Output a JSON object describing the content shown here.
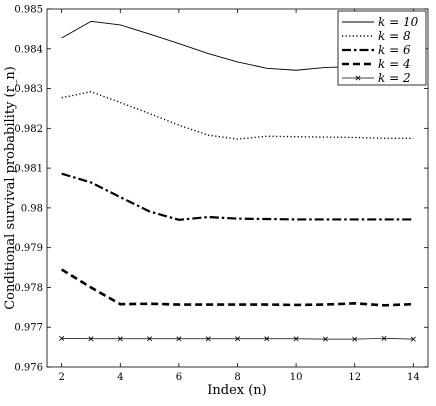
{
  "chart_data": {
    "type": "line",
    "title": "",
    "xlabel": "Index (n)",
    "ylabel": "Conditional survival probability (r_n)",
    "xlim": [
      1.5,
      14.5
    ],
    "ylim": [
      0.976,
      0.985
    ],
    "x_ticks": [
      2,
      4,
      6,
      8,
      10,
      12,
      14
    ],
    "x_tick_labels": [
      "2",
      "4",
      "6",
      "8",
      "10",
      "12",
      "14"
    ],
    "y_ticks": [
      0.976,
      0.977,
      0.978,
      0.979,
      0.98,
      0.981,
      0.982,
      0.983,
      0.984,
      0.985
    ],
    "y_tick_labels": [
      "0.976",
      "0.977",
      "0.978",
      "0.979",
      "0.98",
      "0.981",
      "0.982",
      "0.983",
      "0.984",
      "0.985"
    ],
    "grid": false,
    "legend_position": "top-right",
    "x": [
      2,
      3,
      4,
      5,
      6,
      7,
      8,
      9,
      10,
      11,
      12,
      13,
      14
    ],
    "series": [
      {
        "name": "k = 10",
        "style": "solid",
        "marker": "none",
        "values": [
          0.98427,
          0.98469,
          0.9846,
          0.98437,
          0.98413,
          0.98388,
          0.98367,
          0.98351,
          0.98346,
          0.98353,
          0.98355,
          0.98352,
          0.98351
        ]
      },
      {
        "name": "k = 8",
        "style": "dotted",
        "marker": "none",
        "values": [
          0.98277,
          0.98292,
          0.98265,
          0.98237,
          0.98208,
          0.98183,
          0.98173,
          0.9818,
          0.98179,
          0.98178,
          0.98177,
          0.98175,
          0.98175
        ]
      },
      {
        "name": "k = 6",
        "style": "dashdot",
        "marker": "none",
        "values": [
          0.98086,
          0.98064,
          0.98027,
          0.97991,
          0.9797,
          0.97977,
          0.97973,
          0.97972,
          0.97971,
          0.97971,
          0.97971,
          0.97971,
          0.97971
        ]
      },
      {
        "name": "k = 4",
        "style": "dashed",
        "marker": "none",
        "values": [
          0.97845,
          0.978,
          0.97758,
          0.97759,
          0.97757,
          0.97757,
          0.97757,
          0.97757,
          0.97756,
          0.97757,
          0.9776,
          0.97755,
          0.97758
        ]
      },
      {
        "name": "k = 2",
        "style": "solid-thin",
        "marker": "x",
        "values": [
          0.97672,
          0.97671,
          0.97671,
          0.97671,
          0.97671,
          0.97671,
          0.97671,
          0.97671,
          0.97671,
          0.9767,
          0.9767,
          0.97672,
          0.9767
        ]
      }
    ]
  }
}
